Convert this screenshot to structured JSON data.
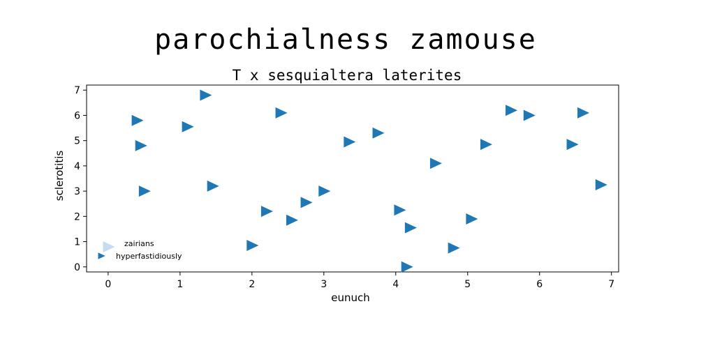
{
  "chart_data": {
    "type": "scatter",
    "title": "parochialness zamouse",
    "subtitle": "T x sesquialtera laterites",
    "xlabel": "eunuch",
    "ylabel": "sclerotitis",
    "xlim": [
      -0.3,
      7.1
    ],
    "ylim": [
      -0.2,
      7.2
    ],
    "xticks": [
      "0",
      "1",
      "2",
      "3",
      "4",
      "5",
      "6",
      "7"
    ],
    "yticks": [
      "0",
      "1",
      "2",
      "3",
      "4",
      "5",
      "6",
      "7"
    ],
    "grid": false,
    "legend_position": "lower-left",
    "marker": "triangle-right",
    "series": [
      {
        "name": "zairians",
        "color": "#c6dbef",
        "points": []
      },
      {
        "name": "hyperfastidiously",
        "color": "#1f77b4",
        "points": [
          {
            "x": 0.4,
            "y": 5.8
          },
          {
            "x": 0.45,
            "y": 4.8
          },
          {
            "x": 0.5,
            "y": 3.0
          },
          {
            "x": 1.1,
            "y": 5.55
          },
          {
            "x": 1.35,
            "y": 6.8
          },
          {
            "x": 1.45,
            "y": 3.2
          },
          {
            "x": 2.0,
            "y": 0.85
          },
          {
            "x": 2.2,
            "y": 2.2
          },
          {
            "x": 2.4,
            "y": 6.1
          },
          {
            "x": 2.55,
            "y": 1.85
          },
          {
            "x": 2.75,
            "y": 2.55
          },
          {
            "x": 3.0,
            "y": 3.0
          },
          {
            "x": 3.35,
            "y": 4.95
          },
          {
            "x": 3.75,
            "y": 5.3
          },
          {
            "x": 4.05,
            "y": 2.25
          },
          {
            "x": 4.15,
            "y": 0.0
          },
          {
            "x": 4.2,
            "y": 1.55
          },
          {
            "x": 4.55,
            "y": 4.1
          },
          {
            "x": 4.8,
            "y": 0.75
          },
          {
            "x": 5.05,
            "y": 1.9
          },
          {
            "x": 5.25,
            "y": 4.85
          },
          {
            "x": 5.6,
            "y": 6.2
          },
          {
            "x": 5.85,
            "y": 6.0
          },
          {
            "x": 6.45,
            "y": 4.85
          },
          {
            "x": 6.6,
            "y": 6.1
          },
          {
            "x": 6.85,
            "y": 3.25
          }
        ]
      }
    ]
  }
}
